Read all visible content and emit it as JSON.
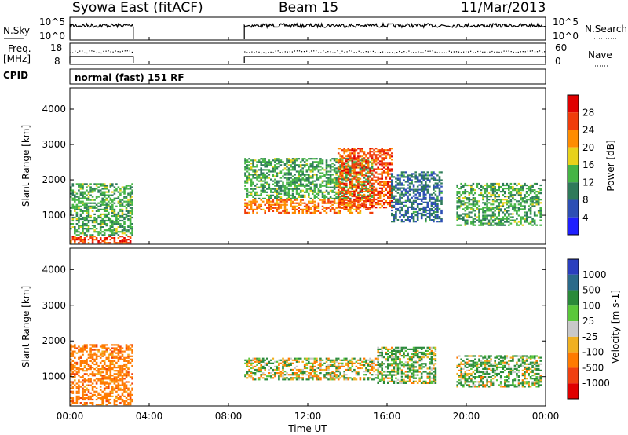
{
  "header": {
    "station": "Syowa East (fitACF)",
    "beam": "Beam 15",
    "date": "11/Mar/2013"
  },
  "noise_panel": {
    "left_label": "N.Sky",
    "right_label": "N.Search",
    "left_ticks": [
      "10^5",
      "10^0"
    ],
    "right_ticks": [
      "10^5",
      "10^0"
    ]
  },
  "freq_panel": {
    "left_label_1": "Freq.",
    "left_label_2": "[MHz]",
    "left_ticks": [
      "18",
      "8"
    ],
    "right_ticks": [
      "60",
      "0"
    ],
    "right_label": "Nave"
  },
  "cpid": {
    "label": "CPID",
    "value": "normal (fast) 151 RF"
  },
  "power_panel": {
    "ylabel": "Slant Range [km]",
    "yticks": [
      "4000",
      "3000",
      "2000",
      "1000"
    ],
    "colorbar_label": "Power [dB]",
    "colorbar_ticks": [
      "28",
      "24",
      "20",
      "16",
      "12",
      "8",
      "4"
    ],
    "colors": [
      "#1f1fff",
      "#2d4fb5",
      "#2e7a5a",
      "#45b545",
      "#e8d21a",
      "#ff8c00",
      "#f03c0a",
      "#e00000"
    ]
  },
  "velocity_panel": {
    "ylabel": "Slant Range [km]",
    "yticks": [
      "4000",
      "3000",
      "2000",
      "1000"
    ],
    "colorbar_label": "Velocity [m s-1]",
    "colorbar_ticks": [
      "1000",
      "500",
      "100",
      "25",
      "-25",
      "-100",
      "-500",
      "-1000"
    ],
    "colors": [
      "#2a3fbf",
      "#2a6a8a",
      "#2a8a3a",
      "#5ac83a",
      "#c8c8c8",
      "#f0b020",
      "#ff7a00",
      "#f04010",
      "#e00000"
    ]
  },
  "xaxis": {
    "label": "Time UT",
    "ticks": [
      "00:00",
      "04:00",
      "08:00",
      "12:00",
      "16:00",
      "20:00",
      "00:00"
    ]
  },
  "chart_data": [
    {
      "type": "line",
      "title": "Syowa East (fitACF)",
      "series": [
        {
          "name": "N.Sky",
          "active_ranges_ut_hours": [
            [
              0,
              3.2
            ],
            [
              8.8,
              24
            ]
          ]
        }
      ],
      "xlim": [
        0,
        24
      ]
    },
    {
      "type": "heatmap",
      "ylabel": "Slant Range [km]",
      "xlabel": "Time UT",
      "xlim": [
        0,
        24
      ],
      "ylim": [
        180,
        4600
      ],
      "colorbar": "Power [dB]",
      "zlim": [
        0,
        30
      ],
      "regions": [
        {
          "t": [
            0,
            3.2
          ],
          "range_km": [
            200,
            420
          ],
          "value": 24
        },
        {
          "t": [
            0,
            3.2
          ],
          "range_km": [
            420,
            1900
          ],
          "value": 12
        },
        {
          "t": [
            8.8,
            15.2
          ],
          "range_km": [
            1050,
            1450
          ],
          "value": 22
        },
        {
          "t": [
            8.8,
            15.2
          ],
          "range_km": [
            1450,
            2600
          ],
          "value": 12
        },
        {
          "t": [
            13.5,
            16.2
          ],
          "range_km": [
            1200,
            2900
          ],
          "value": 24
        },
        {
          "t": [
            16.2,
            18.8
          ],
          "range_km": [
            800,
            2200
          ],
          "value": 8
        },
        {
          "t": [
            19.5,
            23.8
          ],
          "range_km": [
            700,
            1900
          ],
          "value": 12
        }
      ]
    },
    {
      "type": "heatmap",
      "ylabel": "Slant Range [km]",
      "xlabel": "Time UT",
      "xlim": [
        0,
        24
      ],
      "ylim": [
        180,
        4600
      ],
      "colorbar": "Velocity [m s-1]",
      "zlim": [
        -1000,
        1000
      ],
      "regions": [
        {
          "t": [
            0,
            3.2
          ],
          "range_km": [
            200,
            1900
          ],
          "value": -300
        },
        {
          "t": [
            8.8,
            15.5
          ],
          "range_km": [
            900,
            1500
          ],
          "value": 0
        },
        {
          "t": [
            15.5,
            18.5
          ],
          "range_km": [
            800,
            1800
          ],
          "value": 100
        },
        {
          "t": [
            19.5,
            23.8
          ],
          "range_km": [
            700,
            1600
          ],
          "value": 100
        }
      ]
    }
  ]
}
